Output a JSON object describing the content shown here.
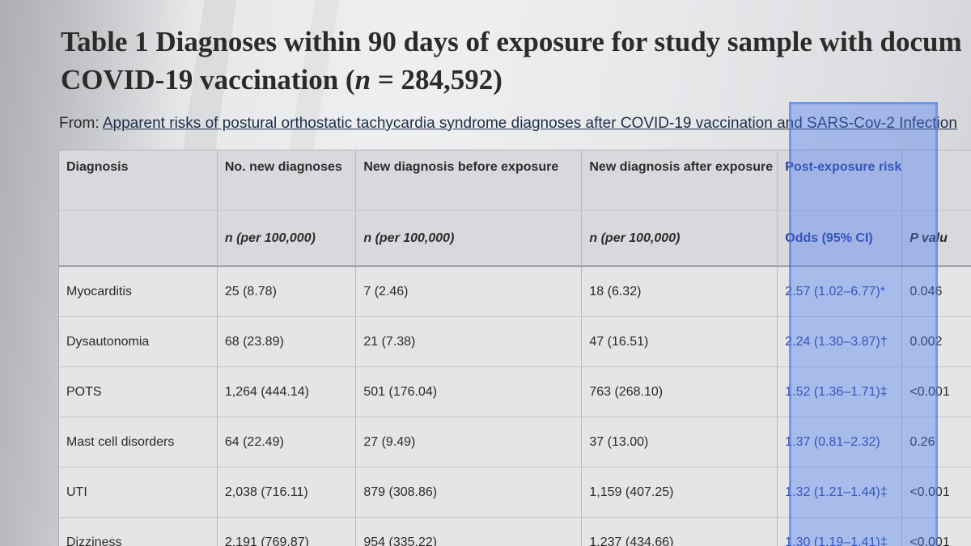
{
  "title": {
    "line1": "Table 1 Diagnoses within 90  days of exposure for study sample with docum",
    "line2_prefix": "COVID-19 vaccination (",
    "line2_var": "n",
    "line2_suffix": " = 284,592)"
  },
  "source": {
    "prefix": "From: ",
    "link_text": "Apparent risks of postural orthostatic tachycardia syndrome diagnoses after COVID-19 vaccination and SARS-Cov-2 Infection"
  },
  "table": {
    "headers_row1": [
      "Diagnosis",
      "No. new diagnoses",
      "New diagnosis before exposure",
      "New diagnosis after exposure",
      "Post-exposure risk",
      ""
    ],
    "headers_row2": [
      "",
      "n (per 100,000)",
      "n (per 100,000)",
      "n (per 100,000)",
      "Odds (95% CI)",
      "P valu"
    ],
    "rows": [
      [
        "Myocarditis",
        "25 (8.78)",
        "7 (2.46)",
        "18 (6.32)",
        "2.57 (1.02–6.77)*",
        "0.046"
      ],
      [
        "Dysautonomia",
        "68 (23.89)",
        "21 (7.38)",
        "47 (16.51)",
        "2.24 (1.30–3.87)†",
        "0.002"
      ],
      [
        "POTS",
        "1,264 (444.14)",
        "501 (176.04)",
        "763 (268.10)",
        "1.52 (1.36–1.71)‡",
        "<0.001"
      ],
      [
        "Mast cell disorders",
        "64 (22.49)",
        "27 (9.49)",
        "37 (13.00)",
        "1.37 (0.81–2.32)",
        "0.26"
      ],
      [
        "UTI",
        "2,038 (716.11)",
        "879 (308.86)",
        "1,159 (407.25)",
        "1.32 (1.21–1.44)‡",
        "<0.001"
      ],
      [
        "Dizziness",
        "2,191 (769.87)",
        "954 (335.22)",
        "1,237 (434.66)",
        "1.30 (1.19–1.41)‡",
        "<0.001"
      ]
    ]
  },
  "colors": {
    "highlight": "#4678f5",
    "link": "#1f2f4a",
    "header_accent": "#2a3f9a"
  }
}
